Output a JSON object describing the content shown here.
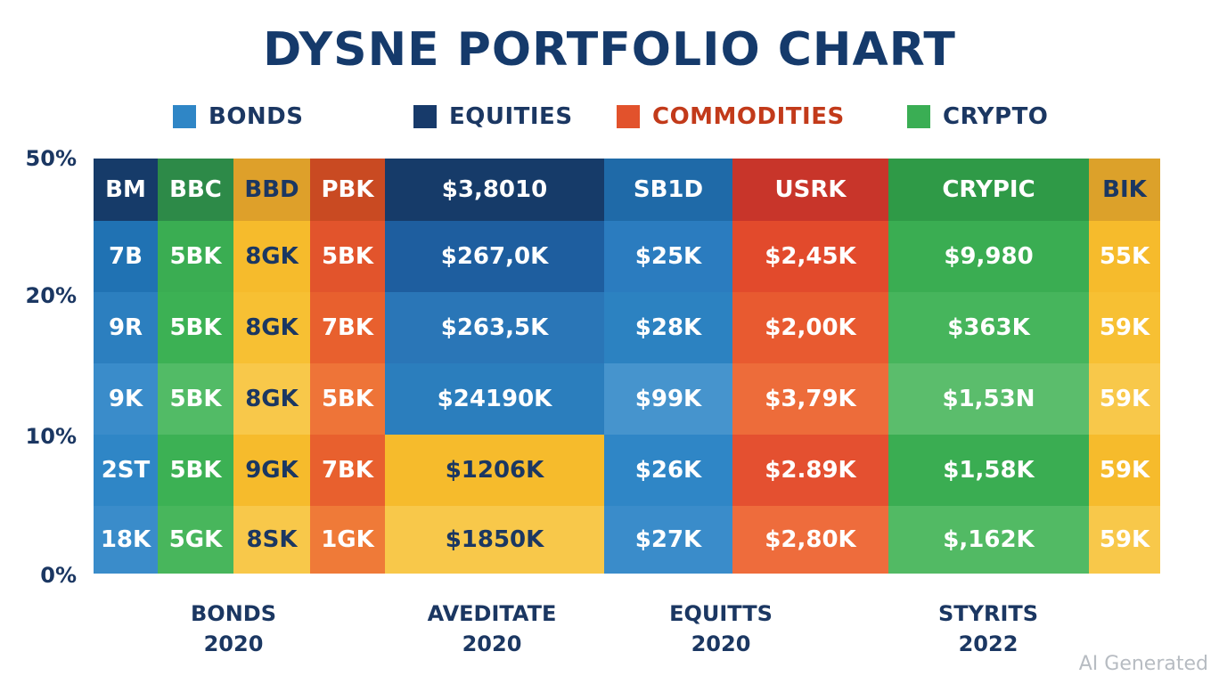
{
  "chart_data": {
    "type": "table",
    "title": "DYSNE PORTFOLIO CHART",
    "legend": [
      {
        "label": "BONDS",
        "color": "#2f86c6",
        "text_color": "#1b3762"
      },
      {
        "label": "EQUITIES",
        "color": "#173a6a",
        "text_color": "#1b3762"
      },
      {
        "label": "COMMODITIES",
        "color": "#e2522c",
        "text_color": "#c23a1a"
      },
      {
        "label": "CRYPTO",
        "color": "#3aae54",
        "text_color": "#1b3762"
      }
    ],
    "y_ticks": [
      "50%",
      "20%",
      "10%",
      "0%"
    ],
    "x_labels": [
      {
        "line1": "BONDS",
        "line2": "2020"
      },
      {
        "line1": "AVEDITATE",
        "line2": "2020"
      },
      {
        "line1": "EQUITTS",
        "line2": "2020"
      },
      {
        "line1": "STYRITS",
        "line2": "2022"
      }
    ],
    "rows": [
      [
        "BM",
        "BBC",
        "BBD",
        "PBK",
        "$3,8010",
        "SB1D",
        "USRK",
        "CRYPIC",
        "BIK"
      ],
      [
        "7B",
        "5BK",
        "8GK",
        "5BK",
        "$267,0K",
        "$25K",
        "$2,45K",
        "$9,980",
        "55K"
      ],
      [
        "9R",
        "5BK",
        "8GK",
        "7BK",
        "$263,5K",
        "$28K",
        "$2,00K",
        "$363K",
        "59K"
      ],
      [
        "9K",
        "5BK",
        "8GK",
        "5BK",
        "$24190K",
        "$99K",
        "$3,79K",
        "$1,53N",
        "59K"
      ],
      [
        "2ST",
        "5BK",
        "9GK",
        "7BK",
        "$1206K",
        "$26K",
        "$2.89K",
        "$1,58K",
        "59K"
      ],
      [
        "18K",
        "5GK",
        "8SK",
        "1GK",
        "$1850K",
        "$27K",
        "$2,80K",
        "$,162K",
        "59K"
      ]
    ],
    "colors": [
      [
        "#163b69",
        "#2d8a48",
        "#dea02a",
        "#c94a22",
        "#163b69",
        "#1f6aa8",
        "#c8352a",
        "#2f9a47",
        "#dca12a"
      ],
      [
        "#2072b3",
        "#3aad52",
        "#f6bb2c",
        "#e2542c",
        "#1e5e9f",
        "#2b7cbf",
        "#e24a2c",
        "#3aad52",
        "#f6bb2c"
      ],
      [
        "#2c7fbf",
        "#3cb154",
        "#f7c033",
        "#e8602e",
        "#2a76b7",
        "#2c82c1",
        "#e85a30",
        "#46b55c",
        "#f7c033"
      ],
      [
        "#3a8cca",
        "#52bb66",
        "#f8c84a",
        "#ee7438",
        "#2b7ebd",
        "#4694cd",
        "#ed6c3a",
        "#5bbd6c",
        "#f8c84a"
      ],
      [
        "#2f86c6",
        "#3cb154",
        "#f6bb2c",
        "#e8602e",
        "#f6bb2c",
        "#2f86c6",
        "#e45030",
        "#3aad52",
        "#f6bb2c"
      ],
      [
        "#3a8cca",
        "#48b65c",
        "#f8c84a",
        "#ef7a38",
        "#f8c84a",
        "#3a8cca",
        "#ee6c3c",
        "#52ba64",
        "#f8c84a"
      ]
    ],
    "text_colors": [
      [
        "#ffffff",
        "#ffffff",
        "#1b3762",
        "#ffffff",
        "#ffffff",
        "#ffffff",
        "#ffffff",
        "#ffffff",
        "#1b3762"
      ],
      [
        "#ffffff",
        "#ffffff",
        "#1b3762",
        "#ffffff",
        "#ffffff",
        "#ffffff",
        "#ffffff",
        "#ffffff",
        "#ffffff"
      ],
      [
        "#ffffff",
        "#ffffff",
        "#1b3762",
        "#ffffff",
        "#ffffff",
        "#ffffff",
        "#ffffff",
        "#ffffff",
        "#ffffff"
      ],
      [
        "#ffffff",
        "#ffffff",
        "#1b3762",
        "#ffffff",
        "#ffffff",
        "#ffffff",
        "#ffffff",
        "#ffffff",
        "#ffffff"
      ],
      [
        "#ffffff",
        "#ffffff",
        "#1b3762",
        "#ffffff",
        "#1b3762",
        "#ffffff",
        "#ffffff",
        "#ffffff",
        "#ffffff"
      ],
      [
        "#ffffff",
        "#ffffff",
        "#1b3762",
        "#ffffff",
        "#1b3762",
        "#ffffff",
        "#ffffff",
        "#ffffff",
        "#ffffff"
      ]
    ]
  },
  "watermark": "AI Generated"
}
